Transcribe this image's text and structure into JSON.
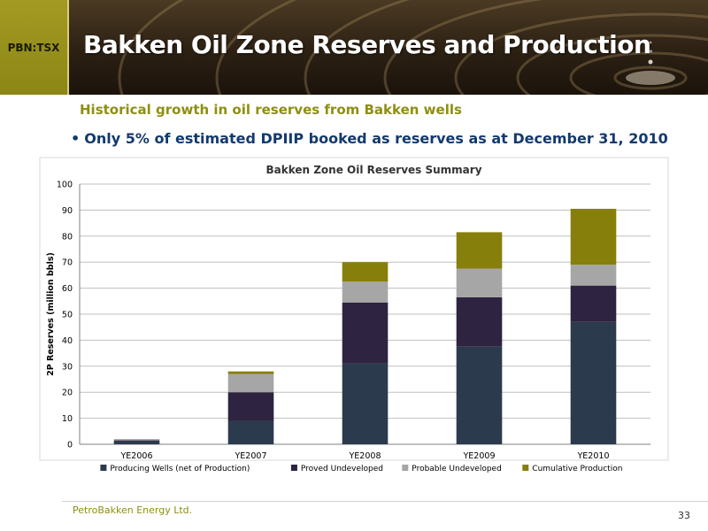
{
  "header": {
    "ticker": "PBN:TSX",
    "title": "Bakken Oil Zone Reserves and Production"
  },
  "content": {
    "subtitle": "Historical growth in oil reserves from Bakken wells",
    "bullet": "Only 5% of estimated DPIIP booked as reserves as at December 31, 2010"
  },
  "footer": {
    "company": "PetroBakken Energy Ltd.",
    "page_number": "33"
  },
  "colors": {
    "accent": "#8e8f12",
    "bullet_text": "#133a6e"
  },
  "chart_data": {
    "type": "bar",
    "stacked": true,
    "title": "Bakken Zone Oil Reserves Summary",
    "xlabel": "",
    "ylabel": "2P Reserves (million bbls)",
    "ylim": [
      0,
      100
    ],
    "yticks": [
      0,
      10,
      20,
      30,
      40,
      50,
      60,
      70,
      80,
      90,
      100
    ],
    "grid": true,
    "legend_position": "bottom",
    "categories": [
      "YE2006",
      "YE2007",
      "YE2008",
      "YE2009",
      "YE2010"
    ],
    "series": [
      {
        "name": "Producing Wells (net of Production)",
        "color": "#2b3a4d",
        "values": [
          1.2,
          9,
          31,
          37.5,
          47
        ]
      },
      {
        "name": "Proved Undeveloped",
        "color": "#2e2340",
        "values": [
          0.3,
          11,
          23.5,
          19,
          14
        ]
      },
      {
        "name": "Probable Undeveloped",
        "color": "#a6a6a6",
        "values": [
          0.5,
          7,
          8,
          11,
          8
        ]
      },
      {
        "name": "Cumulative Production",
        "color": "#867f0b",
        "values": [
          0,
          1,
          7.5,
          14,
          21.5
        ]
      }
    ]
  }
}
